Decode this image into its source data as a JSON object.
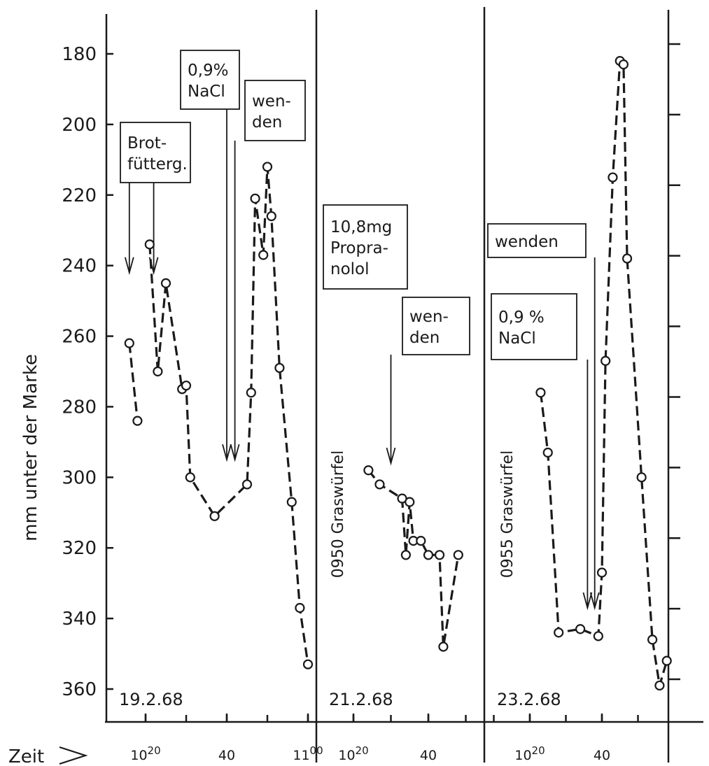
{
  "chart_data": {
    "type": "line",
    "ylabel": "mm unter der Marke",
    "xlabel": "Zeit",
    "y_axis_reversed": true,
    "ylim": [
      170,
      372
    ],
    "yticks": [
      "180",
      "200",
      "220",
      "240",
      "260",
      "280",
      "300",
      "320",
      "340",
      "360"
    ],
    "panels": [
      {
        "date": "19.2.68",
        "x_ticks": [
          {
            "label": "10",
            "sup": "20",
            "t": 20
          },
          {
            "label": "40",
            "sup": "",
            "t": 40
          },
          {
            "label": "11",
            "sup": "00",
            "t": 60
          }
        ],
        "xlim": [
          5,
          70
        ],
        "series": [
          {
            "points": [
              [
                16,
                262
              ],
              [
                18,
                284
              ]
            ]
          },
          {
            "points": [
              [
                21,
                234
              ],
              [
                23,
                270
              ],
              [
                25,
                245
              ],
              [
                29,
                275
              ],
              [
                30,
                274
              ],
              [
                31,
                300
              ],
              [
                37,
                311
              ],
              [
                45,
                302
              ],
              [
                46,
                276
              ],
              [
                47,
                221
              ],
              [
                49,
                237
              ],
              [
                50,
                212
              ],
              [
                51,
                226
              ],
              [
                53,
                269
              ],
              [
                56,
                307
              ],
              [
                58,
                337
              ],
              [
                60,
                353
              ]
            ]
          }
        ],
        "annotations": [
          {
            "text": [
              "Brot-",
              "fütterg."
            ],
            "arrow_at": [
              [
                16,
                242
              ],
              [
                22,
                242
              ]
            ]
          },
          {
            "text": [
              "0,9%",
              "NaCl"
            ],
            "arrow_at": [
              [
                40,
                295
              ]
            ]
          },
          {
            "text": [
              "wen-",
              "den"
            ],
            "arrow_at": [
              [
                42,
                295
              ]
            ]
          }
        ]
      },
      {
        "date": "21.2.68",
        "side_label": "0950 Graswürfel",
        "x_ticks": [
          {
            "label": "10",
            "sup": "20",
            "t": 20
          },
          {
            "label": "40",
            "sup": "",
            "t": 40
          }
        ],
        "xlim": [
          5,
          60
        ],
        "series": [
          {
            "points": [
              [
                24,
                298
              ],
              [
                27,
                302
              ],
              [
                33,
                306
              ],
              [
                34,
                322
              ],
              [
                35,
                307
              ],
              [
                36,
                318
              ],
              [
                38,
                318
              ],
              [
                40,
                322
              ],
              [
                43,
                322
              ],
              [
                44,
                348
              ],
              [
                48,
                322
              ]
            ]
          }
        ],
        "annotations": [
          {
            "text": [
              "10,8mg",
              "Propra-",
              "nolol"
            ],
            "arrow_at": []
          },
          {
            "text": [
              "wen-",
              "den"
            ],
            "arrow_at": [
              [
                30,
                296
              ]
            ]
          }
        ]
      },
      {
        "date": "23.2.68",
        "side_label": "0955 Graswürfel",
        "x_ticks": [
          {
            "label": "10",
            "sup": "20",
            "t": 20
          },
          {
            "label": "40",
            "sup": "",
            "t": 40
          }
        ],
        "xlim": [
          5,
          60
        ],
        "series": [
          {
            "points": [
              [
                23,
                276
              ],
              [
                25,
                293
              ],
              [
                28,
                344
              ],
              [
                34,
                343
              ],
              [
                39,
                345
              ],
              [
                40,
                327
              ],
              [
                41,
                267
              ],
              [
                43,
                215
              ],
              [
                45,
                182
              ],
              [
                46,
                183
              ],
              [
                47,
                238
              ],
              [
                51,
                300
              ],
              [
                54,
                346
              ],
              [
                56,
                359
              ],
              [
                58,
                352
              ]
            ]
          }
        ],
        "annotations": [
          {
            "text": [
              "wenden"
            ],
            "arrow_at": [
              [
                38,
                337
              ]
            ]
          },
          {
            "text": [
              "0,9 %",
              "NaCl"
            ],
            "arrow_at": [
              [
                36,
                337
              ]
            ]
          }
        ]
      }
    ]
  }
}
